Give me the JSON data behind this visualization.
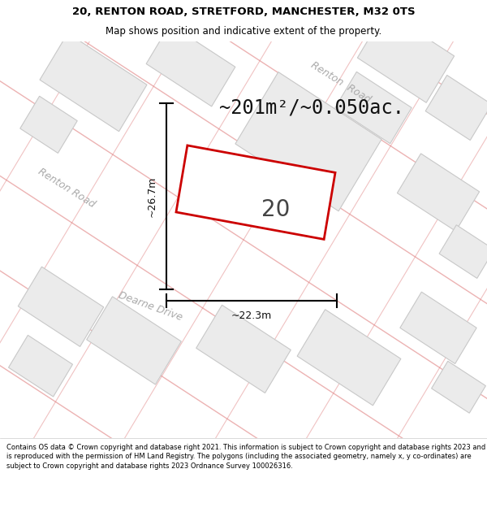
{
  "title_line1": "20, RENTON ROAD, STRETFORD, MANCHESTER, M32 0TS",
  "title_line2": "Map shows position and indicative extent of the property.",
  "area_text": "~201m²/~0.050ac.",
  "number_label": "20",
  "dim_width": "~22.3m",
  "dim_height": "~26.7m",
  "footer_text": "Contains OS data © Crown copyright and database right 2021. This information is subject to Crown copyright and database rights 2023 and is reproduced with the permission of HM Land Registry. The polygons (including the associated geometry, namely x, y co-ordinates) are subject to Crown copyright and database rights 2023 Ordnance Survey 100026316.",
  "map_bg": "#f7f5f3",
  "plot_color_fill": "#ffffff",
  "plot_color_edge": "#cc0000",
  "road_line_color": "#e08080",
  "road_line_alpha": 0.6,
  "building_fill": "#ebebeb",
  "building_edge": "#c8c8c8",
  "road_label_color": "#aaaaaa",
  "title_fontsize": 9.5,
  "subtitle_fontsize": 8.5,
  "area_fontsize": 17,
  "label_fontsize": 22,
  "footer_fontsize": 6.0
}
